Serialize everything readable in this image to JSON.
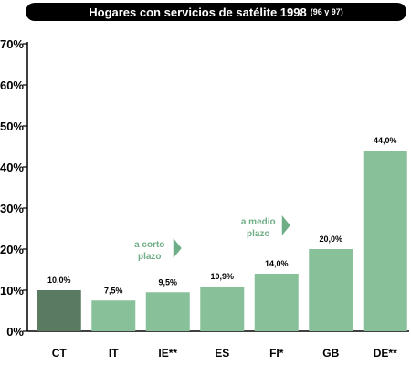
{
  "chart_data": {
    "type": "bar",
    "title": "Hogares con servicios de satélite 1998",
    "subtitle": "(96 y 97)",
    "categories": [
      "CT",
      "IT",
      "IE**",
      "ES",
      "FI*",
      "GB",
      "DE**"
    ],
    "values": [
      10.0,
      7.5,
      9.5,
      10.9,
      14.0,
      20.0,
      44.0
    ],
    "value_labels": [
      "10,0%",
      "7,5%",
      "9,5%",
      "10,9%",
      "14,0%",
      "20,0%",
      "44,0%"
    ],
    "ylim": [
      0,
      70
    ],
    "yticks": [
      0,
      10,
      20,
      30,
      40,
      50,
      60,
      70
    ],
    "ytick_labels": [
      "0%",
      "10%",
      "20%",
      "30%",
      "40%",
      "50%",
      "60%",
      "70%"
    ],
    "xlabel": "",
    "ylabel": "",
    "grid": false,
    "colors": {
      "highlight_bar": "#5a7a62",
      "bar": "#88c09a",
      "annotation": "#6fae86"
    },
    "annotations": [
      {
        "lines": [
          "a corto",
          "plazo"
        ],
        "near_category": "IE**"
      },
      {
        "lines": [
          "a medio",
          "plazo"
        ],
        "near_category": "FI*"
      }
    ]
  }
}
